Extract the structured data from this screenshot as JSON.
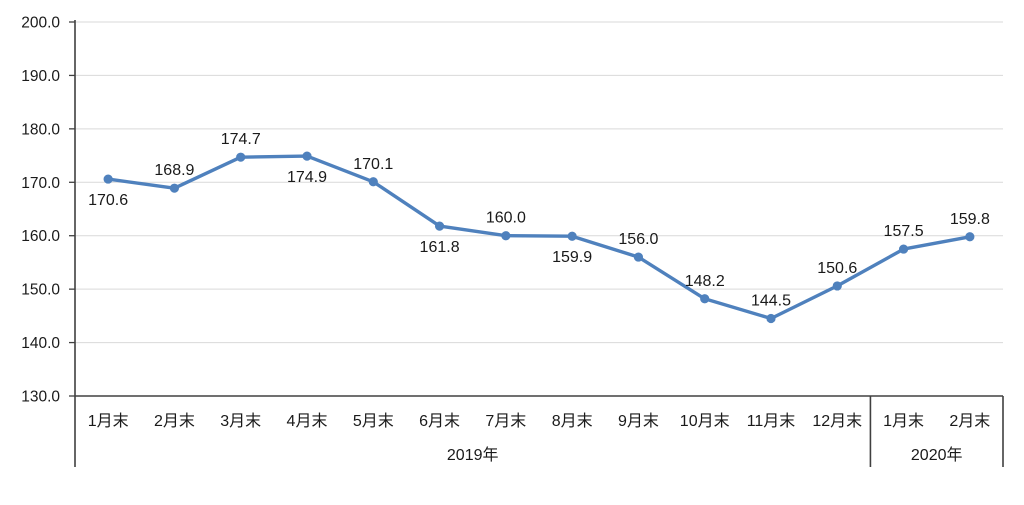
{
  "chart_data": {
    "type": "line",
    "title": "",
    "xlabel": "",
    "ylabel": "",
    "categories": [
      "1月末",
      "2月末",
      "3月末",
      "4月末",
      "5月末",
      "6月末",
      "7月末",
      "8月末",
      "9月末",
      "10月末",
      "11月末",
      "12月末",
      "1月末",
      "2月末"
    ],
    "category_groups": [
      {
        "label": "2019年",
        "span": 12
      },
      {
        "label": "2020年",
        "span": 2
      }
    ],
    "series": [
      {
        "name": "",
        "values": [
          170.6,
          168.9,
          174.7,
          174.9,
          170.1,
          161.8,
          160.0,
          159.9,
          156.0,
          148.2,
          144.5,
          150.6,
          157.5,
          159.8
        ]
      }
    ],
    "data_labels": [
      "170.6",
      "168.9",
      "174.7",
      "174.9",
      "170.1",
      "161.8",
      "160.0",
      "159.9",
      "156.0",
      "148.2",
      "144.5",
      "150.6",
      "157.5",
      "159.8"
    ],
    "data_label_positions": [
      "below",
      "above",
      "above",
      "below",
      "above",
      "below",
      "above",
      "below",
      "above",
      "above",
      "above",
      "above",
      "above",
      "above"
    ],
    "ylim": [
      130,
      200
    ],
    "y_ticks": [
      "200.0",
      "190.0",
      "180.0",
      "170.0",
      "160.0",
      "150.0",
      "140.0",
      "130.0"
    ],
    "grid": true,
    "legend": "none",
    "colors": {
      "line": "#4F81BD",
      "marker": "#4F81BD",
      "gridline": "#D9D9D9",
      "axis": "#404040",
      "text": "#1a1a1a"
    }
  }
}
